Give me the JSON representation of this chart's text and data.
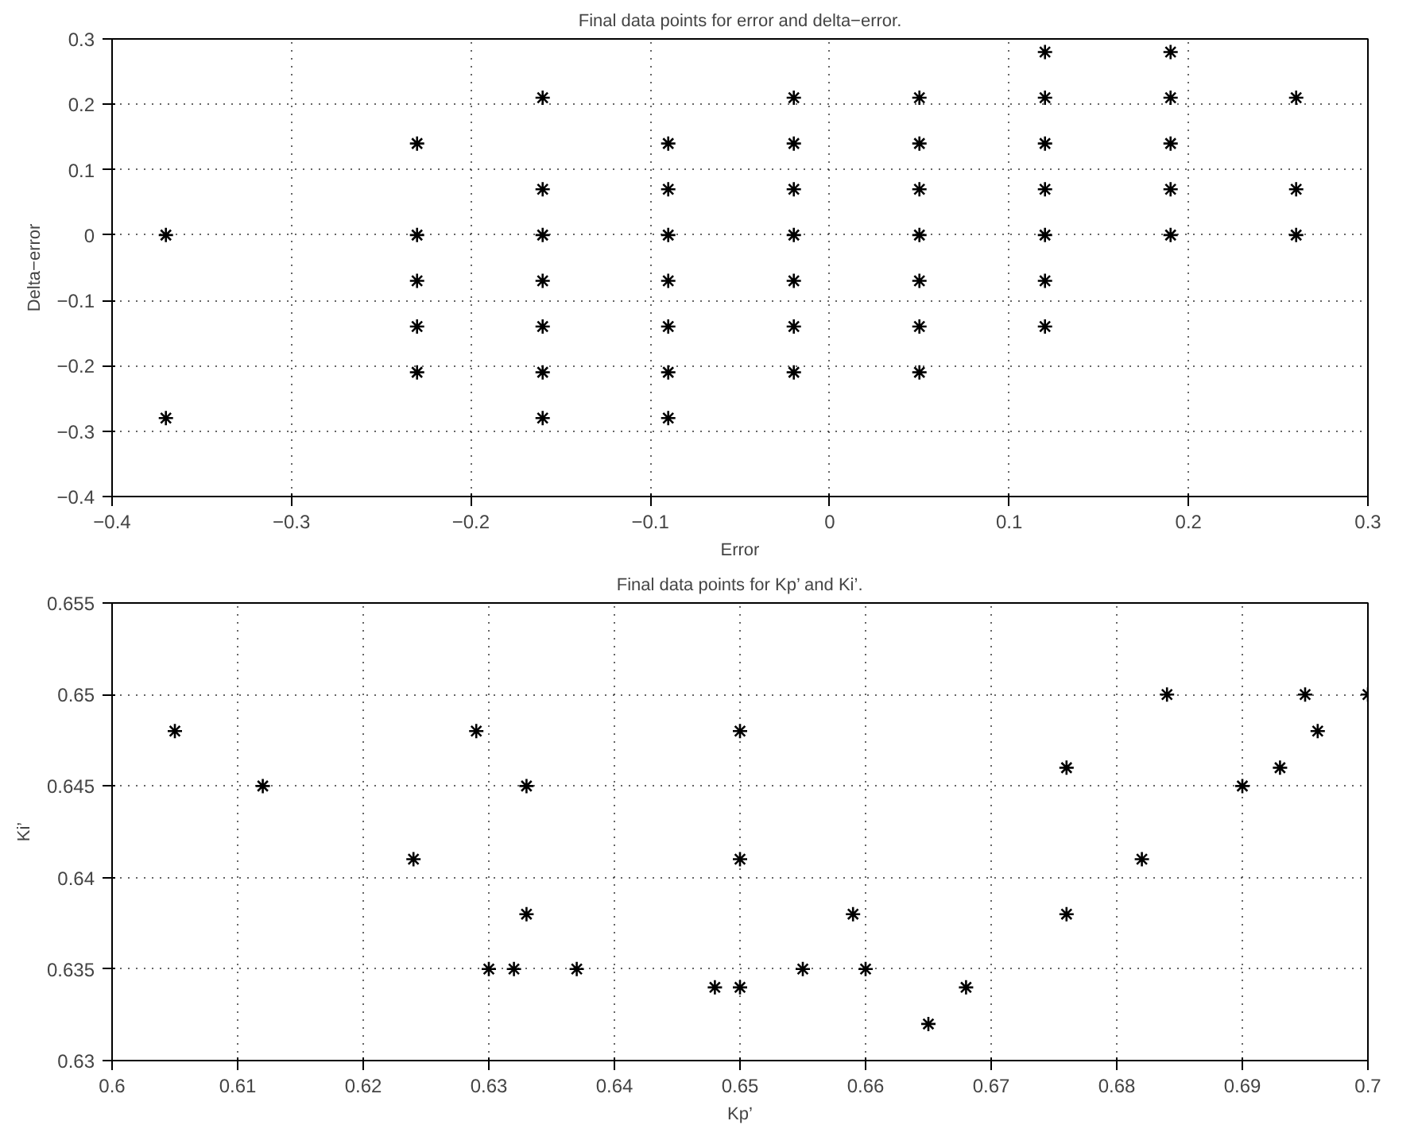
{
  "chart_data": [
    {
      "type": "scatter",
      "title": "Final data points for error and delta−error.",
      "xlabel": "Error",
      "ylabel": "Delta−error",
      "x": [
        -0.37,
        -0.37,
        -0.23,
        -0.23,
        -0.23,
        -0.23,
        -0.23,
        -0.16,
        -0.16,
        -0.16,
        -0.16,
        -0.16,
        -0.16,
        -0.16,
        -0.09,
        -0.09,
        -0.09,
        -0.09,
        -0.09,
        -0.09,
        -0.09,
        -0.02,
        -0.02,
        -0.02,
        -0.02,
        -0.02,
        -0.02,
        -0.02,
        0.05,
        0.05,
        0.05,
        0.05,
        0.05,
        0.05,
        0.05,
        0.12,
        0.12,
        0.12,
        0.12,
        0.12,
        0.12,
        0.12,
        0.19,
        0.19,
        0.19,
        0.19,
        0.19,
        0.26,
        0.26,
        0.26
      ],
      "series": [
        {
          "color": "#000000",
          "values": [
            0,
            -0.28,
            0.14,
            0,
            -0.07,
            -0.14,
            -0.21,
            0.21,
            0.07,
            0,
            -0.07,
            -0.14,
            -0.21,
            -0.28,
            0.14,
            0.07,
            0,
            -0.07,
            -0.14,
            -0.21,
            -0.28,
            0.21,
            0.14,
            0.07,
            0,
            -0.07,
            -0.14,
            -0.21,
            0.21,
            0.14,
            0.07,
            0,
            -0.07,
            -0.14,
            -0.21,
            0.28,
            0.21,
            0.14,
            0.07,
            0,
            -0.07,
            -0.14,
            0.28,
            0.21,
            0.14,
            0.07,
            0,
            0.21,
            0.07,
            0
          ]
        }
      ],
      "xlim": [
        -0.4,
        0.3
      ],
      "xticks": [
        {
          "value": -0.4,
          "label": "−0.4"
        },
        {
          "value": -0.3,
          "label": "−0.3"
        },
        {
          "value": -0.2,
          "label": "−0.2"
        },
        {
          "value": -0.1,
          "label": "−0.1"
        },
        0,
        0.1,
        0.2,
        0.3
      ],
      "ylim": [
        -0.4,
        0.3
      ],
      "yticks": [
        {
          "value": -0.4,
          "label": "−0.4"
        },
        {
          "value": -0.3,
          "label": "−0.3"
        },
        {
          "value": -0.2,
          "label": "−0.2"
        },
        {
          "value": -0.1,
          "label": "−0.1"
        },
        0,
        0.1,
        0.2,
        0.3
      ],
      "grid": true,
      "marker": "cross"
    },
    {
      "type": "scatter",
      "title": "Final data points for Kp’ and Ki’.",
      "xlabel": "Kp’",
      "ylabel": "Ki’",
      "x": [
        0.605,
        0.612,
        0.624,
        0.629,
        0.633,
        0.633,
        0.63,
        0.632,
        0.637,
        0.648,
        0.65,
        0.65,
        0.65,
        0.655,
        0.659,
        0.66,
        0.665,
        0.668,
        0.676,
        0.676,
        0.682,
        0.684,
        0.69,
        0.693,
        0.695,
        0.696,
        0.7
      ],
      "series": [
        {
          "color": "#000000",
          "values": [
            0.648,
            0.645,
            0.641,
            0.648,
            0.645,
            0.638,
            0.635,
            0.635,
            0.635,
            0.634,
            0.634,
            0.648,
            0.641,
            0.635,
            0.638,
            0.635,
            0.632,
            0.634,
            0.646,
            0.638,
            0.641,
            0.65,
            0.645,
            0.646,
            0.65,
            0.648,
            0.65
          ]
        }
      ],
      "xlim": [
        0.6,
        0.7
      ],
      "xticks": [
        0.6,
        0.61,
        0.62,
        0.63,
        0.64,
        0.65,
        0.66,
        0.67,
        0.68,
        0.69,
        0.7
      ],
      "ylim": [
        0.63,
        0.655
      ],
      "yticks": [
        0.63,
        0.635,
        0.64,
        0.645,
        0.65,
        0.655
      ],
      "grid": true,
      "marker": "cross"
    }
  ]
}
